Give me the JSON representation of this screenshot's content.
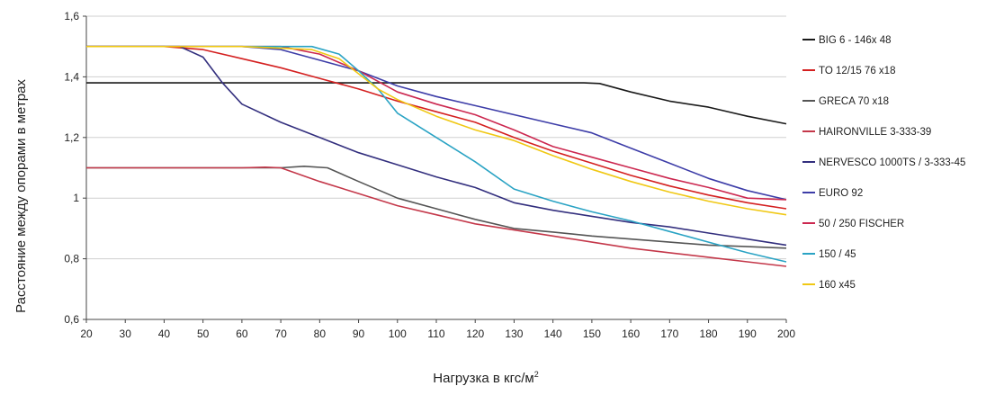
{
  "chart_data": {
    "type": "line",
    "title": "",
    "xlabel": "Нагрузка в кгс/м",
    "xlabel_sup": "2",
    "ylabel": "Расстояние между опорами в метрах",
    "xlim": [
      20,
      200
    ],
    "ylim": [
      0.6,
      1.6
    ],
    "x_ticks": [
      20,
      30,
      40,
      50,
      60,
      70,
      80,
      90,
      100,
      110,
      120,
      130,
      140,
      150,
      160,
      170,
      180,
      190,
      200
    ],
    "y_ticks": [
      {
        "value": 0.6,
        "label": "0,6"
      },
      {
        "value": 0.8,
        "label": "0,8"
      },
      {
        "value": 1.0,
        "label": "1"
      },
      {
        "value": 1.2,
        "label": "1,2"
      },
      {
        "value": 1.4,
        "label": "1,4"
      },
      {
        "value": 1.6,
        "label": "1,6"
      }
    ],
    "grid": "horizontal",
    "legend_position": "right",
    "series": [
      {
        "name": "BIG 6 - 146x 48",
        "color": "#1a1a1a",
        "points": [
          [
            20,
            1.38
          ],
          [
            60,
            1.38
          ],
          [
            100,
            1.38
          ],
          [
            140,
            1.38
          ],
          [
            148,
            1.38
          ],
          [
            152,
            1.378
          ],
          [
            160,
            1.35
          ],
          [
            170,
            1.32
          ],
          [
            180,
            1.3
          ],
          [
            190,
            1.27
          ],
          [
            200,
            1.245
          ]
        ]
      },
      {
        "name": "TO  12/15 76 x18",
        "color": "#d42020",
        "points": [
          [
            20,
            1.5
          ],
          [
            40,
            1.5
          ],
          [
            50,
            1.49
          ],
          [
            60,
            1.46
          ],
          [
            70,
            1.43
          ],
          [
            80,
            1.395
          ],
          [
            90,
            1.36
          ],
          [
            100,
            1.32
          ],
          [
            110,
            1.285
          ],
          [
            120,
            1.25
          ],
          [
            130,
            1.2
          ],
          [
            140,
            1.155
          ],
          [
            150,
            1.115
          ],
          [
            160,
            1.075
          ],
          [
            170,
            1.04
          ],
          [
            180,
            1.01
          ],
          [
            190,
            0.985
          ],
          [
            200,
            0.965
          ]
        ]
      },
      {
        "name": "GRECA 70 x18",
        "color": "#555555",
        "points": [
          [
            20,
            1.1
          ],
          [
            60,
            1.1
          ],
          [
            70,
            1.1
          ],
          [
            76,
            1.105
          ],
          [
            82,
            1.1
          ],
          [
            90,
            1.055
          ],
          [
            100,
            1.0
          ],
          [
            110,
            0.965
          ],
          [
            120,
            0.93
          ],
          [
            130,
            0.9
          ],
          [
            140,
            0.888
          ],
          [
            150,
            0.875
          ],
          [
            160,
            0.865
          ],
          [
            170,
            0.855
          ],
          [
            180,
            0.845
          ],
          [
            190,
            0.84
          ],
          [
            200,
            0.835
          ]
        ]
      },
      {
        "name": "HAIRONVILLE  3-333-39",
        "color": "#c4384a",
        "points": [
          [
            20,
            1.1
          ],
          [
            60,
            1.1
          ],
          [
            66,
            1.102
          ],
          [
            70,
            1.1
          ],
          [
            80,
            1.055
          ],
          [
            90,
            1.015
          ],
          [
            100,
            0.975
          ],
          [
            110,
            0.945
          ],
          [
            120,
            0.915
          ],
          [
            130,
            0.895
          ],
          [
            140,
            0.875
          ],
          [
            150,
            0.855
          ],
          [
            160,
            0.835
          ],
          [
            170,
            0.82
          ],
          [
            180,
            0.805
          ],
          [
            190,
            0.79
          ],
          [
            200,
            0.775
          ]
        ]
      },
      {
        "name": "NERVESCO 1000TS / 3-333-45",
        "color": "#332f7e",
        "points": [
          [
            20,
            1.5
          ],
          [
            44,
            1.5
          ],
          [
            50,
            1.465
          ],
          [
            55,
            1.38
          ],
          [
            60,
            1.31
          ],
          [
            70,
            1.25
          ],
          [
            80,
            1.2
          ],
          [
            90,
            1.15
          ],
          [
            100,
            1.11
          ],
          [
            110,
            1.07
          ],
          [
            120,
            1.035
          ],
          [
            130,
            0.985
          ],
          [
            140,
            0.96
          ],
          [
            150,
            0.94
          ],
          [
            160,
            0.92
          ],
          [
            170,
            0.905
          ],
          [
            180,
            0.885
          ],
          [
            190,
            0.865
          ],
          [
            200,
            0.845
          ]
        ]
      },
      {
        "name": "EURO 92",
        "color": "#3d3da8",
        "points": [
          [
            20,
            1.5
          ],
          [
            40,
            1.5
          ],
          [
            60,
            1.5
          ],
          [
            70,
            1.49
          ],
          [
            80,
            1.455
          ],
          [
            90,
            1.42
          ],
          [
            100,
            1.37
          ],
          [
            110,
            1.335
          ],
          [
            120,
            1.305
          ],
          [
            130,
            1.275
          ],
          [
            140,
            1.245
          ],
          [
            150,
            1.215
          ],
          [
            160,
            1.165
          ],
          [
            170,
            1.115
          ],
          [
            180,
            1.065
          ],
          [
            190,
            1.025
          ],
          [
            200,
            0.995
          ]
        ]
      },
      {
        "name": "50 / 250 FISCHER",
        "color": "#cc2850",
        "points": [
          [
            20,
            1.5
          ],
          [
            60,
            1.5
          ],
          [
            70,
            1.5
          ],
          [
            80,
            1.475
          ],
          [
            90,
            1.42
          ],
          [
            100,
            1.35
          ],
          [
            110,
            1.31
          ],
          [
            120,
            1.275
          ],
          [
            130,
            1.225
          ],
          [
            140,
            1.17
          ],
          [
            150,
            1.135
          ],
          [
            160,
            1.1
          ],
          [
            170,
            1.065
          ],
          [
            180,
            1.035
          ],
          [
            190,
            1.0
          ],
          [
            200,
            0.995
          ]
        ]
      },
      {
        "name": "150 / 45",
        "color": "#2aa3c4",
        "points": [
          [
            20,
            1.5
          ],
          [
            60,
            1.5
          ],
          [
            70,
            1.5
          ],
          [
            78,
            1.5
          ],
          [
            85,
            1.475
          ],
          [
            90,
            1.42
          ],
          [
            95,
            1.36
          ],
          [
            100,
            1.28
          ],
          [
            110,
            1.2
          ],
          [
            120,
            1.12
          ],
          [
            130,
            1.03
          ],
          [
            140,
            0.99
          ],
          [
            150,
            0.955
          ],
          [
            160,
            0.925
          ],
          [
            170,
            0.89
          ],
          [
            180,
            0.855
          ],
          [
            190,
            0.82
          ],
          [
            200,
            0.79
          ]
        ]
      },
      {
        "name": "160 x45",
        "color": "#f0c814",
        "points": [
          [
            20,
            1.5
          ],
          [
            60,
            1.5
          ],
          [
            78,
            1.49
          ],
          [
            85,
            1.46
          ],
          [
            90,
            1.41
          ],
          [
            95,
            1.36
          ],
          [
            100,
            1.325
          ],
          [
            110,
            1.27
          ],
          [
            120,
            1.225
          ],
          [
            130,
            1.19
          ],
          [
            140,
            1.14
          ],
          [
            150,
            1.095
          ],
          [
            160,
            1.055
          ],
          [
            170,
            1.02
          ],
          [
            180,
            0.99
          ],
          [
            190,
            0.965
          ],
          [
            200,
            0.945
          ]
        ]
      }
    ]
  }
}
